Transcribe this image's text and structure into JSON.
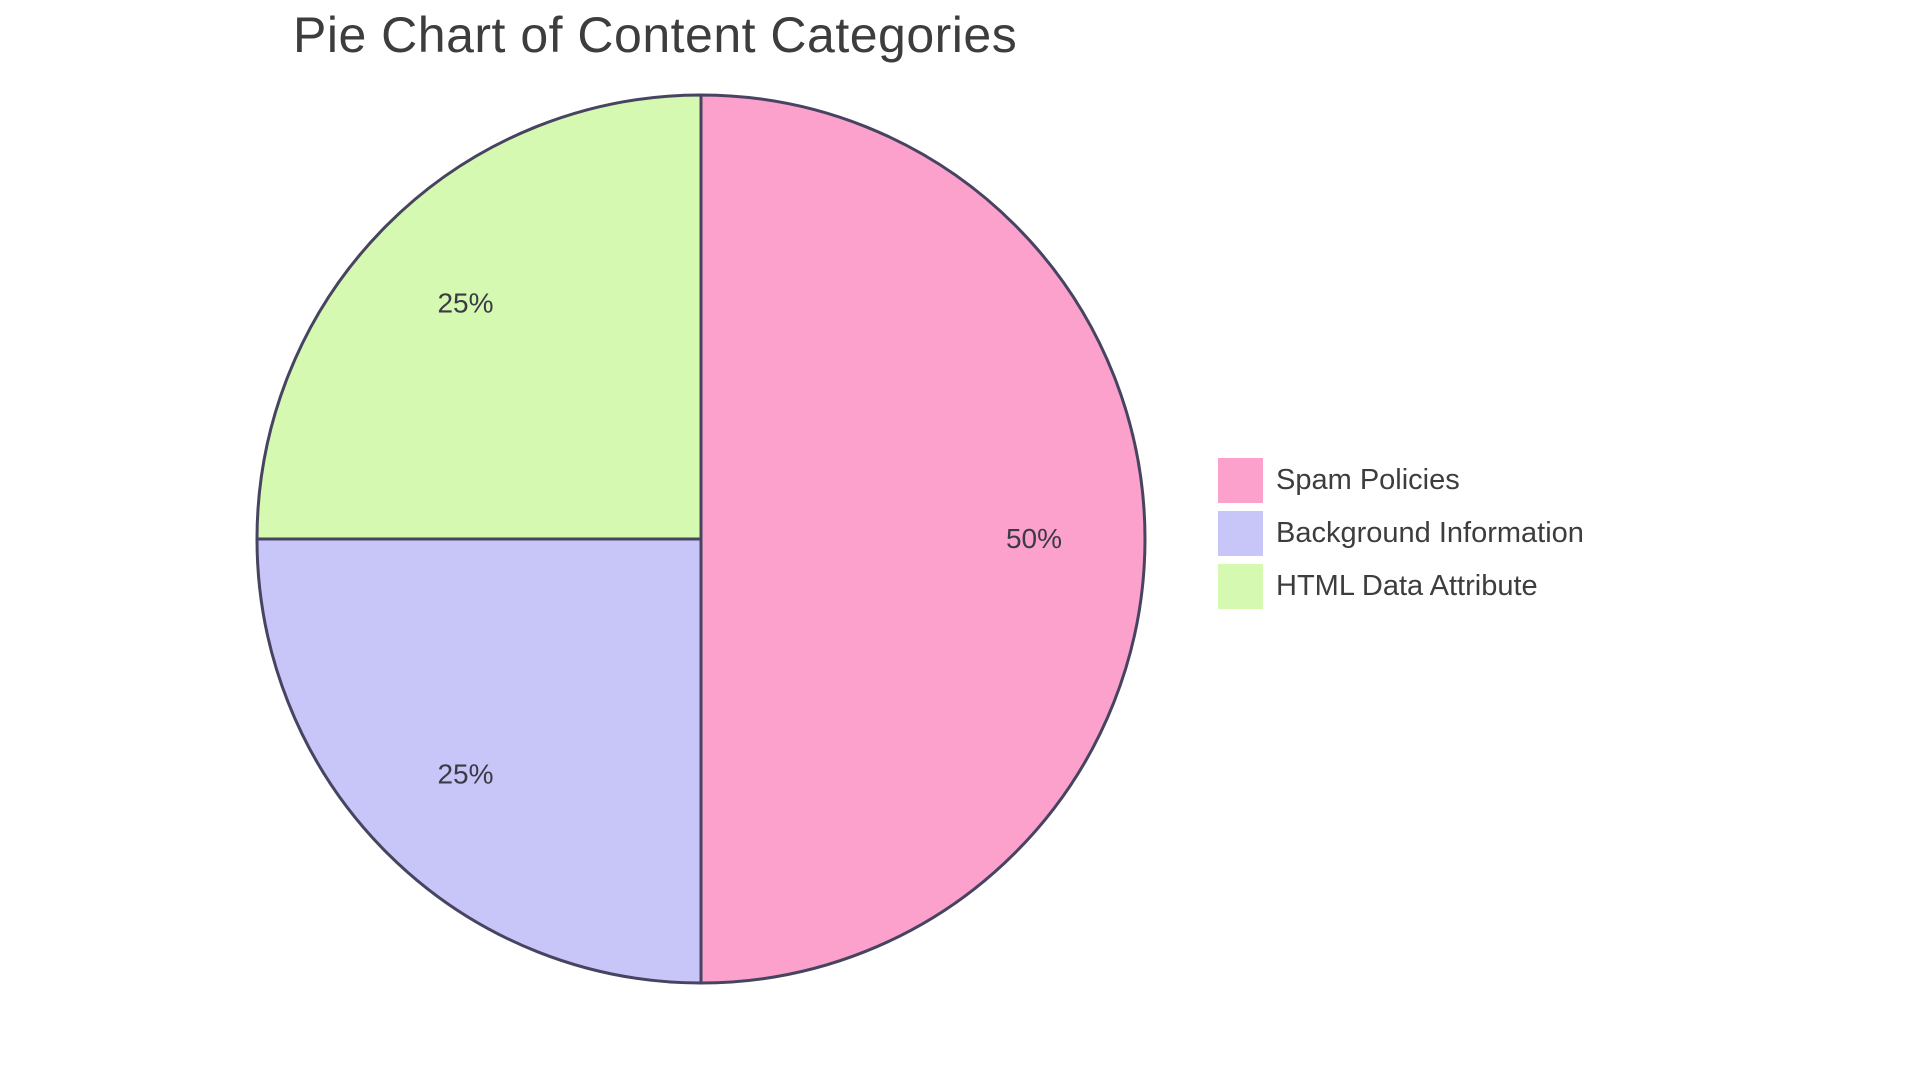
{
  "page": {
    "background": "#ffffff"
  },
  "chart_data": {
    "type": "pie",
    "title": "Pie Chart of Content Categories",
    "labels": [
      "Spam Policies",
      "Background Information",
      "HTML Data Attribute"
    ],
    "values": [
      50,
      25,
      25
    ],
    "slice_labels": [
      "50%",
      "25%",
      "25%"
    ],
    "colors": [
      "#FBA1CC",
      "#C8C6F9",
      "#D6F9B1"
    ],
    "stroke_color": "#464460",
    "stroke_width": 3,
    "start_angle": "top",
    "direction": "clockwise",
    "legend_position": "right",
    "title_color": "#3D3D3D",
    "label_color": "#3B3B45",
    "legend_text_color": "#3D3D3D"
  }
}
